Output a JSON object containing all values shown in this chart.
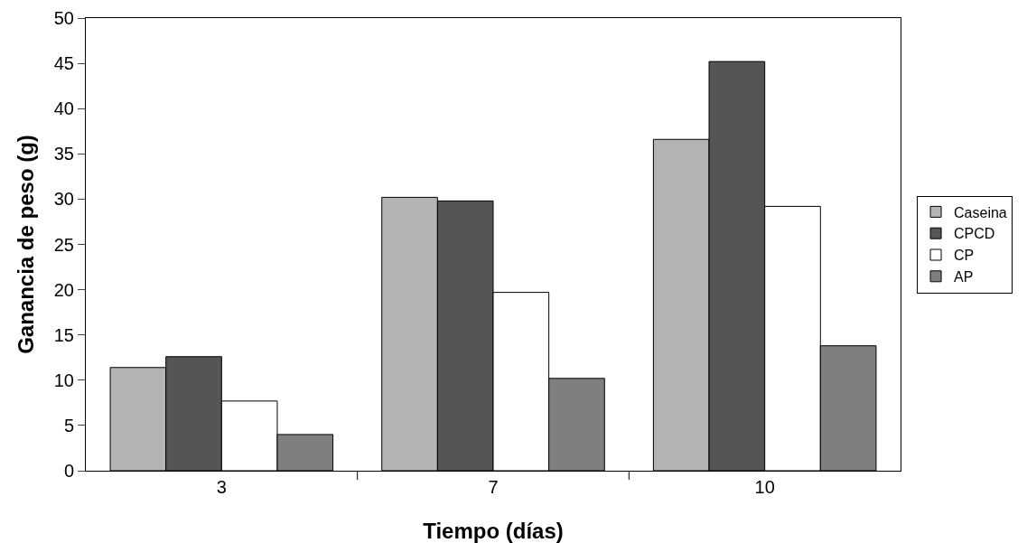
{
  "chart_data": {
    "type": "bar",
    "xlabel": "Tiempo (días)",
    "ylabel": "Ganancia de peso (g)",
    "categories": [
      "3",
      "7",
      "10"
    ],
    "series": [
      {
        "name": "Caseina",
        "color": "#b4b4b4",
        "values": [
          11.4,
          30.2,
          36.6
        ]
      },
      {
        "name": "CPCD",
        "color": "#555555",
        "values": [
          12.6,
          29.8,
          45.2
        ]
      },
      {
        "name": "CP",
        "color": "#ffffff",
        "values": [
          7.7,
          19.7,
          29.2
        ]
      },
      {
        "name": "AP",
        "color": "#7f7f7f",
        "values": [
          4.0,
          10.2,
          13.8
        ]
      }
    ],
    "ylim": [
      0,
      50
    ],
    "yticks": [
      0,
      5,
      10,
      15,
      20,
      25,
      30,
      35,
      40,
      45,
      50
    ],
    "grid": false,
    "legend": "right"
  }
}
